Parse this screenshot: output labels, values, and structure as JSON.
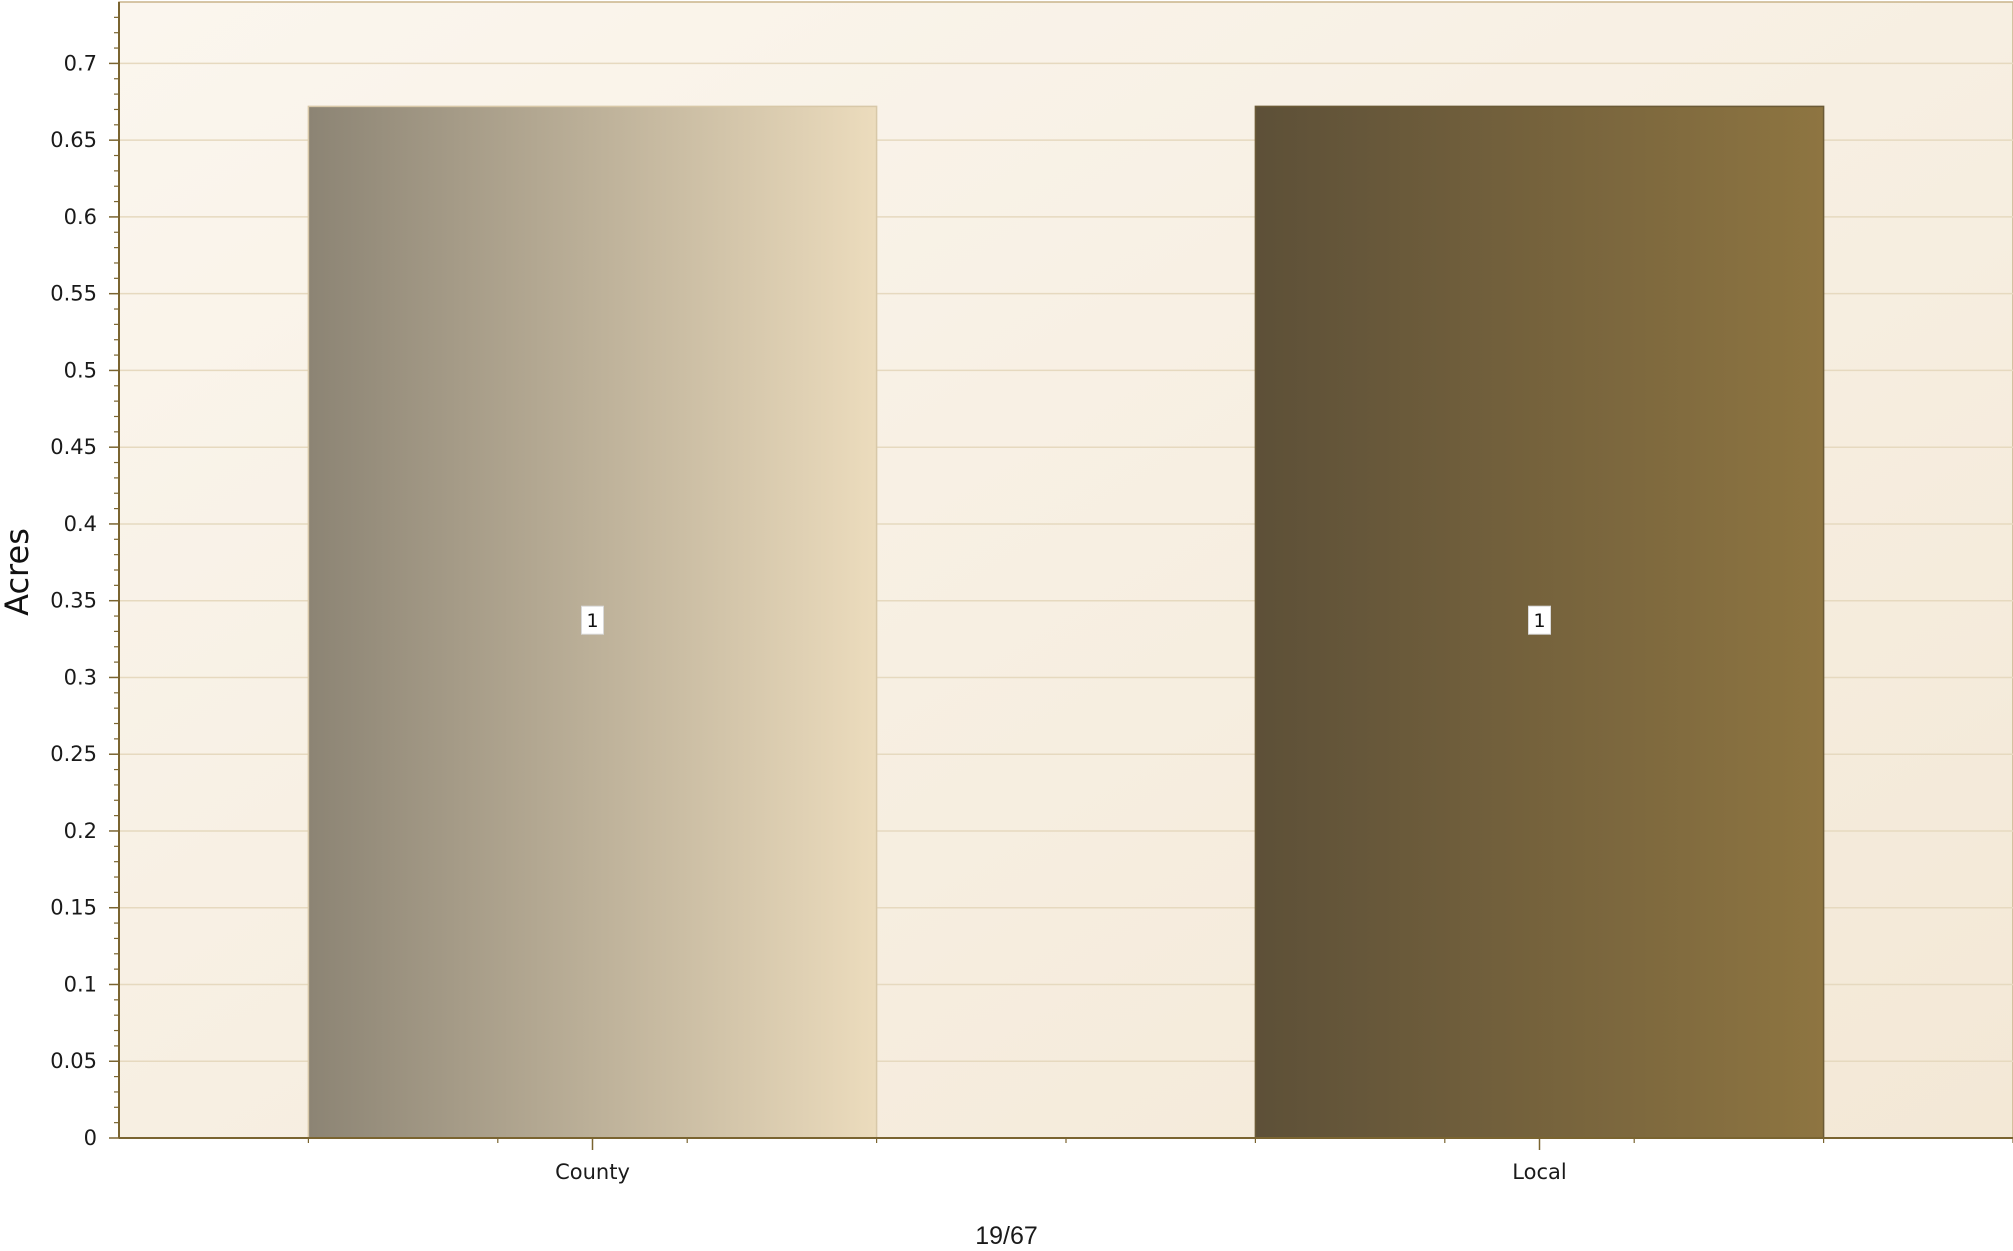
{
  "chart_data": {
    "type": "bar",
    "categories": [
      "County",
      "Local"
    ],
    "values": [
      0.672,
      0.672
    ],
    "data_labels": [
      "1",
      "1"
    ],
    "title": "",
    "xlabel": "",
    "ylabel": "Acres",
    "ylim": [
      0,
      0.74
    ],
    "y_ticks": [
      0,
      0.05,
      0.1,
      0.15,
      0.2,
      0.25,
      0.3,
      0.35,
      0.4,
      0.45,
      0.5,
      0.55,
      0.6,
      0.65,
      0.7
    ],
    "grid": true,
    "legend": "none",
    "colors": {
      "plot_bg_start": "#fbf6ee",
      "plot_bg_end": "#f3e8d6",
      "grid": "#e6d9bf",
      "axis": "#7a6430",
      "county_bar_start": "#8c8474",
      "county_bar_end": "#ecdcbd",
      "local_bar_start": "#5d5038",
      "local_bar_end": "#8e7541"
    }
  },
  "footer": {
    "page_indicator": "19/67"
  }
}
